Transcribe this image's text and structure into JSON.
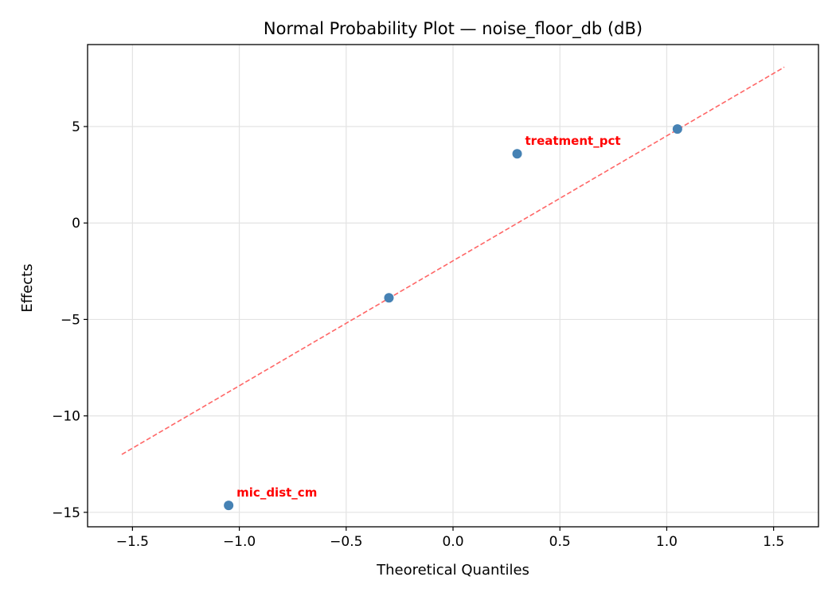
{
  "chart_data": {
    "type": "scatter",
    "title": "Normal Probability Plot — noise_floor_db (dB)",
    "xlabel": "Theoretical Quantiles",
    "ylabel": "Effects",
    "xlim": [
      -1.71,
      1.71
    ],
    "ylim": [
      -15.75,
      9.25
    ],
    "xticks": [
      -1.5,
      -1.0,
      -0.5,
      0.0,
      0.5,
      1.0,
      1.5
    ],
    "xtick_labels": [
      "−1.5",
      "−1.0",
      "−0.5",
      "0.0",
      "0.5",
      "1.0",
      "1.5"
    ],
    "yticks": [
      5,
      0,
      -5,
      -10,
      -15
    ],
    "ytick_labels": [
      "5",
      "0",
      "−5",
      "−10",
      "−15"
    ],
    "grid": true,
    "points": [
      {
        "x": -1.05,
        "y": -14.64,
        "label": "mic_dist_cm"
      },
      {
        "x": -0.3,
        "y": -3.88,
        "label": ""
      },
      {
        "x": 0.3,
        "y": 3.59,
        "label": "treatment_pct"
      },
      {
        "x": 1.05,
        "y": 4.87,
        "label": ""
      }
    ],
    "reference_line": {
      "x": [
        -1.55,
        1.55
      ],
      "y": [
        -12.0,
        8.08
      ],
      "style": "dashed"
    },
    "colors": {
      "points": "#4682b4",
      "line": "#ff6666",
      "labels": "#ff0000"
    }
  }
}
